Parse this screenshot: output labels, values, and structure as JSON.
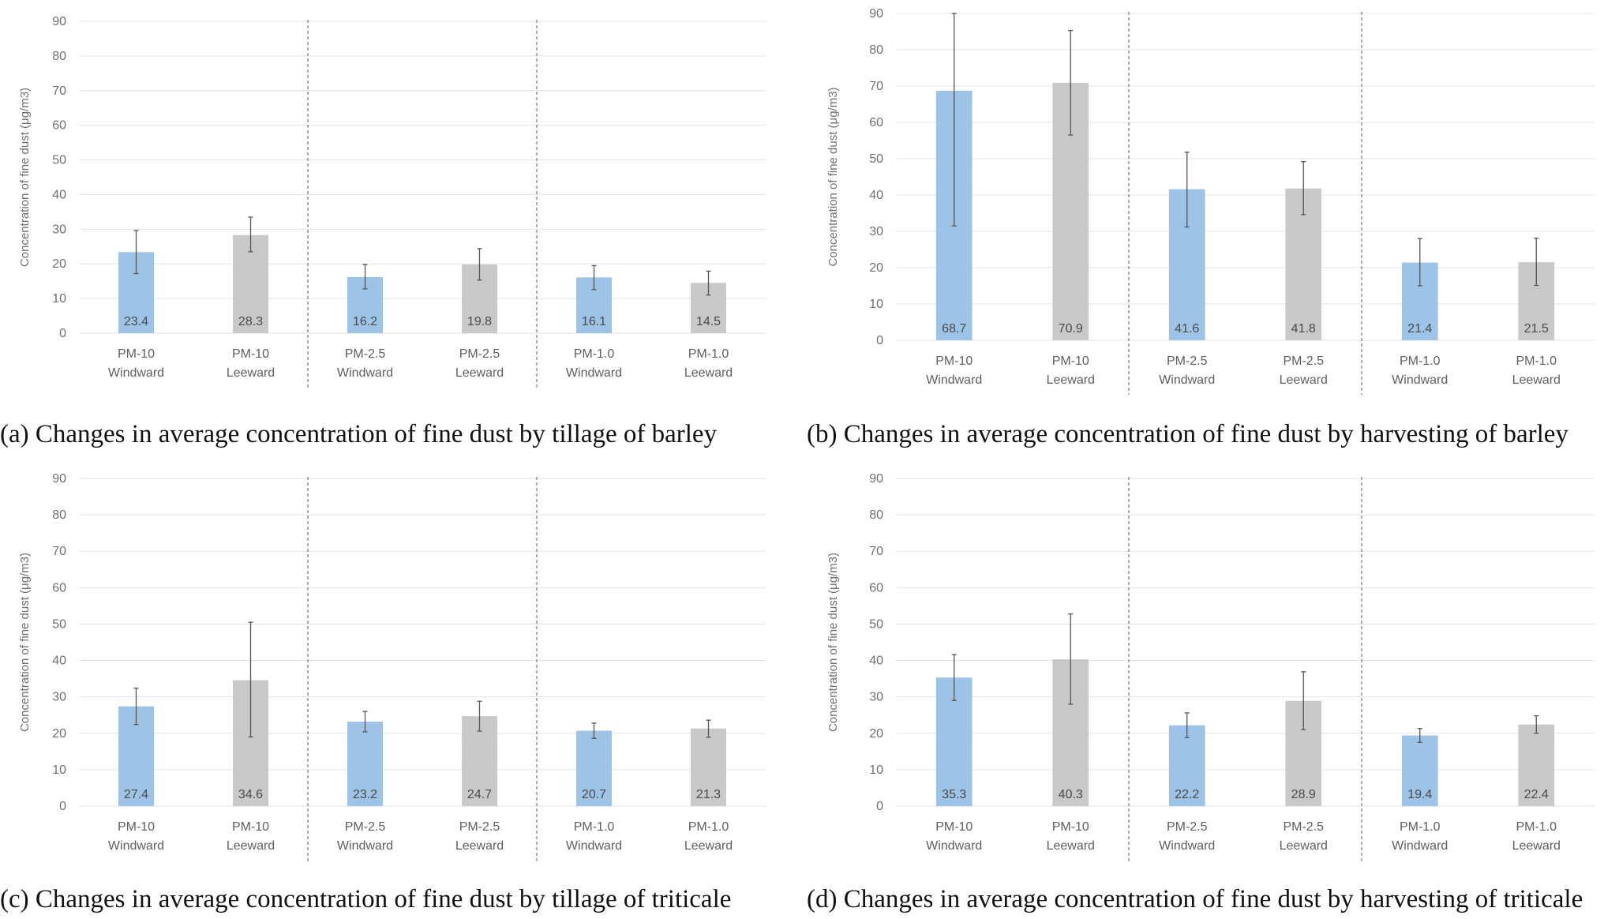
{
  "colors": {
    "windward": "#9dc3e6",
    "leeward": "#c9c9c9"
  },
  "chart_data": [
    {
      "type": "bar",
      "caption": "(a) Changes in average concentration of fine dust by tillage of barley",
      "ylabel": "Concentration of fine dust (μg/m3)",
      "ylim": [
        0,
        90
      ],
      "yticks": [
        0,
        10,
        20,
        30,
        40,
        50,
        60,
        70,
        80,
        90
      ],
      "grid": true,
      "categories": [
        {
          "line1": "PM-10",
          "line2": "Windward"
        },
        {
          "line1": "PM-10",
          "line2": "Leeward"
        },
        {
          "line1": "PM-2.5",
          "line2": "Windward"
        },
        {
          "line1": "PM-2.5",
          "line2": "Leeward"
        },
        {
          "line1": "PM-1.0",
          "line2": "Windward"
        },
        {
          "line1": "PM-1.0",
          "line2": "Leeward"
        }
      ],
      "values": [
        23.4,
        28.3,
        16.2,
        19.8,
        16.1,
        14.5
      ],
      "error_low": [
        17.2,
        23.5,
        12.8,
        15.3,
        12.6,
        11.0
      ],
      "error_high": [
        29.6,
        33.5,
        19.8,
        24.4,
        19.5,
        17.9
      ]
    },
    {
      "type": "bar",
      "caption": "(b) Changes in average concentration of fine dust by harvesting of barley",
      "ylabel": "Concentration of fine dust (μg/m3)",
      "ylim": [
        0,
        90
      ],
      "yticks": [
        0,
        10,
        20,
        30,
        40,
        50,
        60,
        70,
        80,
        90
      ],
      "grid": true,
      "categories": [
        {
          "line1": "PM-10",
          "line2": "Windward"
        },
        {
          "line1": "PM-10",
          "line2": "Leeward"
        },
        {
          "line1": "PM-2.5",
          "line2": "Windward"
        },
        {
          "line1": "PM-2.5",
          "line2": "Leeward"
        },
        {
          "line1": "PM-1.0",
          "line2": "Windward"
        },
        {
          "line1": "PM-1.0",
          "line2": "Leeward"
        }
      ],
      "values": [
        68.7,
        70.9,
        41.6,
        41.8,
        21.4,
        21.5
      ],
      "error_low": [
        31.5,
        56.5,
        31.2,
        34.6,
        15.0,
        15.1
      ],
      "error_high": [
        90.0,
        85.3,
        51.8,
        49.2,
        28.0,
        28.1
      ]
    },
    {
      "type": "bar",
      "caption": "(c) Changes in average concentration of fine dust by tillage of triticale",
      "ylabel": "Concentration of fine dust (μg/m3)",
      "ylim": [
        0,
        90
      ],
      "yticks": [
        0,
        10,
        20,
        30,
        40,
        50,
        60,
        70,
        80,
        90
      ],
      "grid": true,
      "categories": [
        {
          "line1": "PM-10",
          "line2": "Windward"
        },
        {
          "line1": "PM-10",
          "line2": "Leeward"
        },
        {
          "line1": "PM-2.5",
          "line2": "Windward"
        },
        {
          "line1": "PM-2.5",
          "line2": "Leeward"
        },
        {
          "line1": "PM-1.0",
          "line2": "Windward"
        },
        {
          "line1": "PM-1.0",
          "line2": "Leeward"
        }
      ],
      "values": [
        27.4,
        34.6,
        23.2,
        24.7,
        20.7,
        21.3
      ],
      "error_low": [
        22.4,
        19.0,
        20.4,
        20.6,
        18.6,
        18.9
      ],
      "error_high": [
        32.4,
        50.5,
        26.0,
        28.8,
        22.8,
        23.6
      ]
    },
    {
      "type": "bar",
      "caption": "(d) Changes in average concentration of fine dust by harvesting of triticale",
      "ylabel": "Concentration of fine dust (μg/m3)",
      "ylim": [
        0,
        90
      ],
      "yticks": [
        0,
        10,
        20,
        30,
        40,
        50,
        60,
        70,
        80,
        90
      ],
      "grid": true,
      "categories": [
        {
          "line1": "PM-10",
          "line2": "Windward"
        },
        {
          "line1": "PM-10",
          "line2": "Leeward"
        },
        {
          "line1": "PM-2.5",
          "line2": "Windward"
        },
        {
          "line1": "PM-2.5",
          "line2": "Leeward"
        },
        {
          "line1": "PM-1.0",
          "line2": "Windward"
        },
        {
          "line1": "PM-1.0",
          "line2": "Leeward"
        }
      ],
      "values": [
        35.3,
        40.3,
        22.2,
        28.9,
        19.4,
        22.4
      ],
      "error_low": [
        29.0,
        28.0,
        18.8,
        21.0,
        17.5,
        20.0
      ],
      "error_high": [
        41.6,
        52.8,
        25.6,
        36.9,
        21.3,
        24.8
      ]
    }
  ]
}
